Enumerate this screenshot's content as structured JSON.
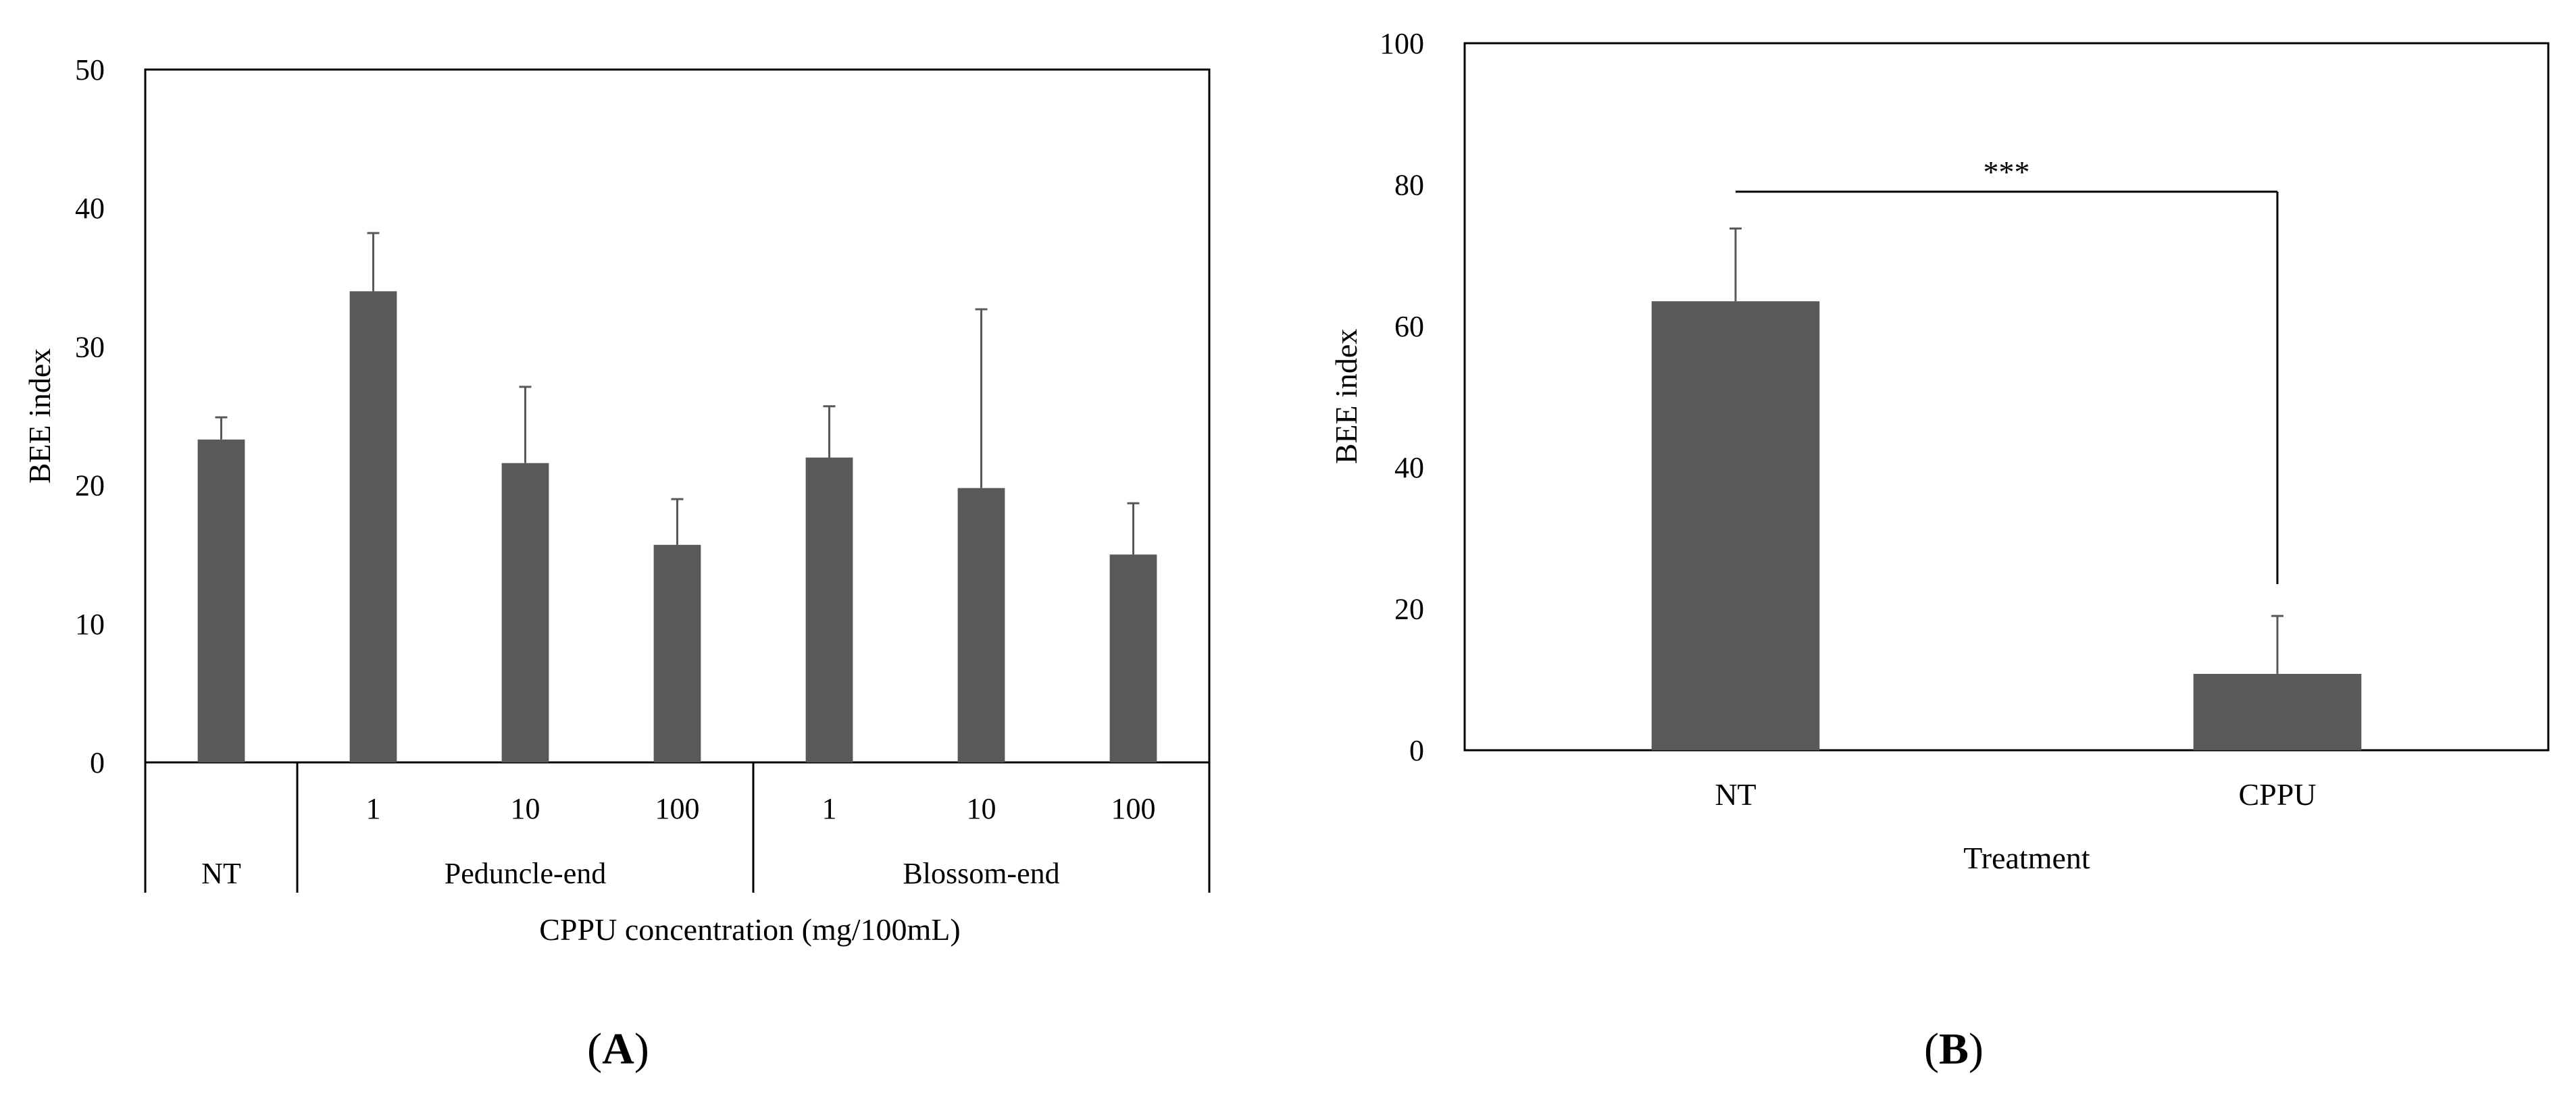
{
  "colors": {
    "bar": "#595959",
    "axis": "#000000",
    "error": "#595959"
  },
  "chart_data": [
    {
      "type": "bar",
      "panel_label": "A",
      "ylabel": "BEE index",
      "xlabel": "CPPU concentration (mg/100mL)",
      "ylim": [
        0,
        50
      ],
      "yticks": [
        "0",
        "10",
        "20",
        "30",
        "40",
        "50"
      ],
      "categories": [
        "",
        "1",
        "10",
        "100",
        "1",
        "10",
        "100"
      ],
      "groups": [
        {
          "label": "NT",
          "span": 1
        },
        {
          "label": "Peduncle-end",
          "span": 3
        },
        {
          "label": "Blossom-end",
          "span": 3
        }
      ],
      "values": [
        23.3,
        34.0,
        21.6,
        15.7,
        22.0,
        19.8,
        15.0
      ],
      "errors": [
        1.6,
        4.2,
        5.5,
        3.3,
        3.7,
        12.9,
        3.7
      ]
    },
    {
      "type": "bar",
      "panel_label": "B",
      "ylabel": "BEE index",
      "xlabel": "Treatment",
      "ylim": [
        0,
        100
      ],
      "yticks": [
        "0",
        "20",
        "40",
        "60",
        "80",
        "100"
      ],
      "categories": [
        "NT",
        "CPPU"
      ],
      "values": [
        63.5,
        10.8
      ],
      "errors": [
        10.3,
        8.2
      ],
      "significance": {
        "label": "***",
        "between": [
          "NT",
          "CPPU"
        ],
        "level": 79
      }
    }
  ]
}
